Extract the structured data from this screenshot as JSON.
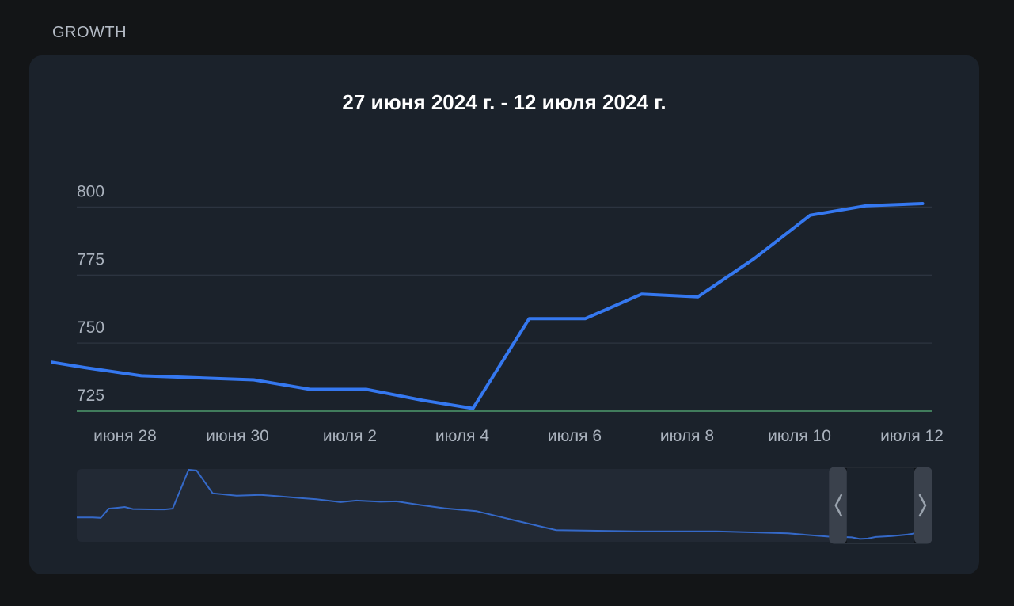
{
  "section": {
    "label": "GROWTH"
  },
  "colors": {
    "line": "#3578f0",
    "grid": "#2c3440",
    "baseline": "#4e9a6c",
    "navigator_bg": "#222934",
    "navigator_line": "#3569c8",
    "handle": "#3a414c"
  },
  "chart_data": {
    "type": "line",
    "title": "27 июня 2024 г. - 12 июля 2024 г.",
    "xlabel": "",
    "ylabel": "",
    "ylim": [
      725,
      801
    ],
    "yticks": [
      725,
      750,
      775,
      800
    ],
    "x_ticks": [
      "июня 28",
      "июня 30",
      "июля 2",
      "июля 4",
      "июля 6",
      "июля 8",
      "июля 10",
      "июля 12"
    ],
    "x_tick_days": [
      1,
      3,
      5,
      7,
      9,
      11,
      13,
      15
    ],
    "grid": true,
    "legend": "none",
    "series": [
      {
        "x": [
          0.0,
          0.6,
          1.6,
          2.0,
          3.6,
          4.6,
          5.6,
          6.6,
          7.5,
          8.5,
          9.5,
          10.5,
          11.5,
          12.5,
          13.5,
          14.5,
          15.5
        ],
        "y": [
          743,
          741,
          738,
          737.7,
          736.5,
          733,
          733,
          729,
          726,
          759,
          759,
          768,
          767,
          781,
          797,
          800.5,
          801.3
        ]
      }
    ],
    "navigator": {
      "series": [
        {
          "x": [
            0,
            2,
            3,
            4,
            5,
            6,
            7,
            10,
            11,
            12,
            14,
            15,
            17,
            20,
            23,
            25,
            28,
            30,
            33,
            35,
            38,
            40,
            43,
            46,
            50,
            55,
            60,
            70,
            80,
            89,
            94,
            97,
            98,
            99,
            100,
            102,
            104,
            106,
            107
          ],
          "y": [
            30,
            30,
            29.5,
            41,
            42,
            43,
            40.5,
            40,
            40,
            41,
            89,
            88,
            60,
            57,
            58,
            56.5,
            54,
            52.5,
            49,
            51,
            49.5,
            50,
            45.5,
            41.5,
            38,
            26,
            14.5,
            13,
            13,
            10.5,
            6.5,
            5.5,
            3.5,
            4,
            6,
            7,
            9,
            12,
            13
          ]
        }
      ],
      "selection_start_day": 94.2
    }
  }
}
